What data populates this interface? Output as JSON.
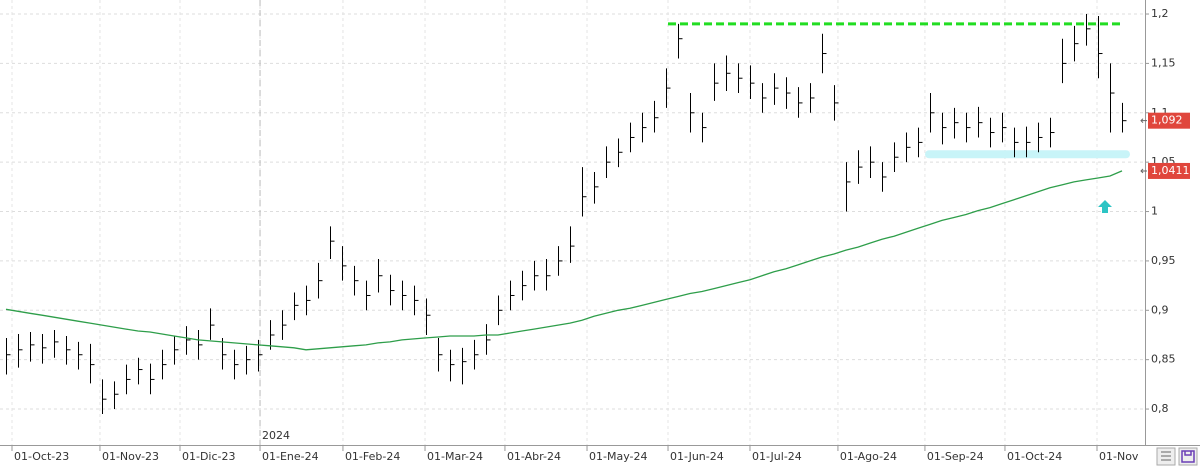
{
  "chart_data": {
    "type": "ohlc",
    "xlim": [
      -0.5,
      94.92
    ],
    "ylim": [
      0.7636,
      1.2142
    ],
    "yticks": [
      {
        "value": 0.8,
        "label": "0,8"
      },
      {
        "value": 0.85,
        "label": "0,85"
      },
      {
        "value": 0.9,
        "label": "0,9"
      },
      {
        "value": 0.95,
        "label": "0,95"
      },
      {
        "value": 1,
        "label": "1"
      },
      {
        "value": 1.05,
        "label": "1,05"
      },
      {
        "value": 1.1,
        "label": "1,1"
      },
      {
        "value": 1.15,
        "label": "1,15"
      },
      {
        "value": 1.2,
        "label": "1,2"
      }
    ],
    "xticks": [
      {
        "value": 0.5,
        "label": "01-Oct-23"
      },
      {
        "value": 7.83,
        "label": "01-Nov-23"
      },
      {
        "value": 14.5,
        "label": "01-Dic-23"
      },
      {
        "value": 21.17,
        "label": "01-Ene-24"
      },
      {
        "value": 28.08,
        "label": "01-Feb-24"
      },
      {
        "value": 34.92,
        "label": "01-Mar-24"
      },
      {
        "value": 41.58,
        "label": "01-Abr-24"
      },
      {
        "value": 48.42,
        "label": "01-May-24"
      },
      {
        "value": 55.17,
        "label": "01-Jun-24"
      },
      {
        "value": 62,
        "label": "01-Jul-24"
      },
      {
        "value": 69.33,
        "label": "01-Ago-24"
      },
      {
        "value": 76.58,
        "label": "01-Sep-24"
      },
      {
        "value": 83.25,
        "label": "01-Oct-24"
      },
      {
        "value": 90.92,
        "label": "01-Nov"
      }
    ],
    "grid": true,
    "year_marker": {
      "value": 21.17,
      "label": "2024"
    },
    "ohlc": {
      "color": "#000000",
      "last_label": "1,092",
      "high": [
        0.872,
        0.876,
        0.878,
        0.876,
        0.88,
        0.874,
        0.868,
        0.866,
        0.83,
        0.828,
        0.845,
        0.852,
        0.846,
        0.86,
        0.874,
        0.884,
        0.88,
        0.902,
        0.872,
        0.86,
        0.864,
        0.87,
        0.89,
        0.9,
        0.918,
        0.925,
        0.948,
        0.985,
        0.965,
        0.945,
        0.93,
        0.952,
        0.936,
        0.93,
        0.925,
        0.912,
        0.872,
        0.86,
        0.862,
        0.87,
        0.886,
        0.915,
        0.93,
        0.94,
        0.95,
        0.952,
        0.965,
        0.985,
        1.045,
        1.04,
        1.066,
        1.074,
        1.09,
        1.1,
        1.112,
        1.145,
        1.19,
        1.12,
        1.1,
        1.15,
        1.158,
        1.15,
        1.148,
        1.13,
        1.14,
        1.136,
        1.126,
        1.13,
        1.18,
        1.128,
        1.05,
        1.062,
        1.066,
        1.05,
        1.07,
        1.08,
        1.085,
        1.12,
        1.1,
        1.105,
        1.1,
        1.106,
        1.095,
        1.1,
        1.085,
        1.086,
        1.09,
        1.095,
        1.175,
        1.188,
        1.2,
        1.198,
        1.15,
        1.11
      ],
      "low": [
        0.835,
        0.842,
        0.848,
        0.846,
        0.852,
        0.845,
        0.84,
        0.826,
        0.795,
        0.8,
        0.815,
        0.825,
        0.815,
        0.83,
        0.845,
        0.855,
        0.85,
        0.87,
        0.84,
        0.83,
        0.835,
        0.838,
        0.86,
        0.87,
        0.89,
        0.895,
        0.912,
        0.952,
        0.93,
        0.915,
        0.9,
        0.918,
        0.905,
        0.9,
        0.895,
        0.875,
        0.838,
        0.828,
        0.825,
        0.84,
        0.855,
        0.885,
        0.9,
        0.91,
        0.92,
        0.92,
        0.935,
        0.948,
        0.995,
        1.008,
        1.034,
        1.045,
        1.06,
        1.07,
        1.08,
        1.105,
        1.155,
        1.08,
        1.07,
        1.112,
        1.122,
        1.12,
        1.114,
        1.1,
        1.108,
        1.104,
        1.095,
        1.1,
        1.14,
        1.092,
        1.0,
        1.028,
        1.034,
        1.02,
        1.04,
        1.05,
        1.055,
        1.08,
        1.068,
        1.074,
        1.07,
        1.075,
        1.065,
        1.07,
        1.055,
        1.055,
        1.06,
        1.065,
        1.13,
        1.152,
        1.168,
        1.135,
        1.08,
        1.08
      ],
      "close": [
        0.855,
        0.86,
        0.865,
        0.862,
        0.868,
        0.86,
        0.855,
        0.845,
        0.81,
        0.815,
        0.83,
        0.84,
        0.83,
        0.845,
        0.86,
        0.87,
        0.865,
        0.885,
        0.855,
        0.845,
        0.85,
        0.855,
        0.875,
        0.885,
        0.905,
        0.91,
        0.93,
        0.97,
        0.945,
        0.93,
        0.915,
        0.935,
        0.92,
        0.915,
        0.91,
        0.895,
        0.855,
        0.845,
        0.848,
        0.855,
        0.87,
        0.9,
        0.915,
        0.925,
        0.935,
        0.935,
        0.95,
        0.965,
        1.015,
        1.025,
        1.05,
        1.06,
        1.075,
        1.085,
        1.095,
        1.125,
        1.175,
        1.1,
        1.085,
        1.13,
        1.14,
        1.135,
        1.13,
        1.115,
        1.125,
        1.12,
        1.11,
        1.115,
        1.16,
        1.11,
        1.03,
        1.045,
        1.05,
        1.035,
        1.055,
        1.065,
        1.07,
        1.1,
        1.085,
        1.09,
        1.085,
        1.09,
        1.08,
        1.085,
        1.07,
        1.07,
        1.075,
        1.08,
        1.15,
        1.17,
        1.185,
        1.16,
        1.12,
        1.092
      ]
    },
    "ma": {
      "color": "#2e9e4a",
      "last_label": "1,0411",
      "values": [
        0.901,
        0.899,
        0.897,
        0.895,
        0.893,
        0.891,
        0.889,
        0.887,
        0.885,
        0.883,
        0.881,
        0.879,
        0.878,
        0.876,
        0.874,
        0.872,
        0.87,
        0.869,
        0.868,
        0.867,
        0.866,
        0.865,
        0.864,
        0.863,
        0.862,
        0.86,
        0.861,
        0.862,
        0.863,
        0.864,
        0.865,
        0.867,
        0.868,
        0.87,
        0.871,
        0.872,
        0.873,
        0.874,
        0.874,
        0.874,
        0.875,
        0.875,
        0.877,
        0.879,
        0.881,
        0.883,
        0.885,
        0.887,
        0.89,
        0.894,
        0.897,
        0.9,
        0.902,
        0.905,
        0.908,
        0.911,
        0.914,
        0.917,
        0.919,
        0.922,
        0.925,
        0.928,
        0.931,
        0.935,
        0.939,
        0.942,
        0.946,
        0.95,
        0.954,
        0.957,
        0.961,
        0.964,
        0.968,
        0.972,
        0.975,
        0.979,
        0.983,
        0.987,
        0.991,
        0.994,
        0.997,
        1.001,
        1.004,
        1.008,
        1.012,
        1.016,
        1.02,
        1.024,
        1.027,
        1.03,
        1.032,
        1.034,
        1.036,
        1.0411
      ]
    },
    "resistance": {
      "value": 1.19,
      "color": "#22dd22"
    },
    "support": {
      "value": 1.058,
      "color": "#c8f4f8"
    },
    "label_color": "#e0463c"
  }
}
